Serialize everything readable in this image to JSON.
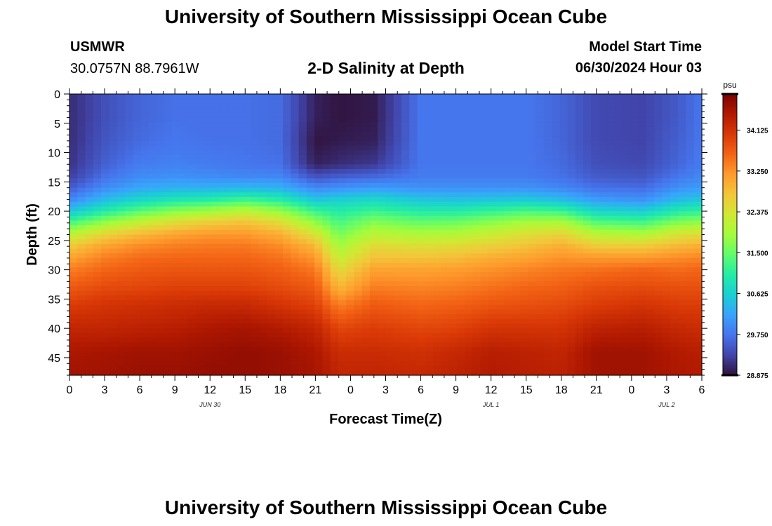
{
  "page": {
    "title": "University of Southern Mississippi Ocean Cube",
    "footer_title": "University of Southern Mississippi Ocean Cube"
  },
  "station": {
    "name": "USMWR",
    "coords": "30.0757N  88.7961W"
  },
  "model": {
    "label": "Model Start Time",
    "start": "06/30/2024 Hour 03"
  },
  "chart_data": {
    "type": "heatmap",
    "title": "2-D Salinity at Depth",
    "xlabel": "Forecast Time(Z)",
    "ylabel": "Depth (ft)",
    "x_tick_labels": [
      "0",
      "3",
      "6",
      "9",
      "12",
      "15",
      "18",
      "21",
      "0",
      "3",
      "6",
      "9",
      "12",
      "15",
      "18",
      "21",
      "0",
      "3",
      "6"
    ],
    "date_labels": [
      {
        "text": "JUN 30",
        "hour": 12
      },
      {
        "text": "JUL 1",
        "hour": 36
      },
      {
        "text": "JUL 2",
        "hour": 51
      }
    ],
    "x_range_hours": [
      0,
      54
    ],
    "y_ticks": [
      0,
      5,
      10,
      15,
      20,
      25,
      30,
      35,
      40,
      45
    ],
    "y_range": [
      0,
      48
    ],
    "y_inverted": true,
    "colorbar": {
      "unit": "psu",
      "tick_labels": [
        "34.125",
        "33.250",
        "32.375",
        "31.500",
        "30.625",
        "29.750",
        "28.875"
      ],
      "tick_values": [
        34.125,
        33.25,
        32.375,
        31.5,
        30.625,
        29.75,
        28.875
      ],
      "range": [
        28.875,
        34.9
      ],
      "colors": [
        "#30123b",
        "#4145ab",
        "#4675ed",
        "#39a2fc",
        "#1bcfd4",
        "#24eca6",
        "#61fc6c",
        "#a4fc3b",
        "#d1e834",
        "#f3c63a",
        "#fe9b2d",
        "#f36315",
        "#d93806",
        "#b11901",
        "#7a0403"
      ]
    },
    "profile_times_hours": [
      0,
      3,
      6,
      9,
      12,
      15,
      18,
      21,
      23,
      26,
      30,
      33,
      36,
      39,
      42,
      45,
      49,
      52,
      54
    ],
    "profile_depths_ft": [
      0,
      4,
      8,
      12,
      14,
      16,
      18,
      20,
      22,
      24,
      26,
      28,
      30,
      33,
      36,
      40,
      44,
      48
    ],
    "salinity_psu": [
      [
        29.1,
        29.1,
        29.1,
        29.15,
        29.25,
        29.5,
        29.9,
        30.5,
        31.3,
        32.1,
        32.7,
        33.1,
        33.4,
        33.7,
        34.0,
        34.3,
        34.5,
        34.6
      ],
      [
        29.4,
        29.4,
        29.45,
        29.55,
        29.7,
        29.95,
        30.4,
        31.0,
        31.8,
        32.6,
        33.1,
        33.4,
        33.6,
        33.85,
        34.1,
        34.3,
        34.55,
        34.6
      ],
      [
        29.6,
        29.6,
        29.65,
        29.8,
        29.95,
        30.2,
        30.7,
        31.4,
        32.2,
        32.9,
        33.3,
        33.55,
        33.7,
        33.9,
        34.15,
        34.35,
        34.6,
        34.65
      ],
      [
        29.7,
        29.7,
        29.75,
        29.85,
        30.0,
        30.3,
        30.9,
        31.7,
        32.5,
        33.1,
        33.4,
        33.6,
        33.75,
        33.95,
        34.2,
        34.4,
        34.6,
        34.65
      ],
      [
        29.7,
        29.7,
        29.7,
        29.8,
        29.95,
        30.3,
        31.0,
        31.9,
        32.7,
        33.2,
        33.45,
        33.6,
        33.75,
        33.95,
        34.25,
        34.5,
        34.65,
        34.7
      ],
      [
        29.7,
        29.7,
        29.7,
        29.75,
        29.9,
        30.35,
        31.2,
        32.1,
        32.8,
        33.2,
        33.45,
        33.6,
        33.75,
        33.95,
        34.25,
        34.55,
        34.7,
        34.7
      ],
      [
        29.65,
        29.65,
        29.65,
        29.7,
        29.9,
        30.3,
        31.0,
        31.8,
        32.5,
        33.0,
        33.3,
        33.5,
        33.65,
        33.85,
        34.1,
        34.45,
        34.65,
        34.65
      ],
      [
        29.0,
        29.0,
        28.9,
        29.0,
        29.4,
        29.9,
        30.5,
        31.2,
        31.8,
        32.4,
        32.9,
        33.2,
        33.45,
        33.7,
        33.95,
        34.3,
        34.5,
        34.55
      ],
      [
        28.9,
        28.9,
        28.95,
        29.1,
        29.5,
        30.0,
        30.6,
        31.0,
        31.3,
        31.6,
        31.9,
        32.2,
        32.5,
        32.9,
        33.4,
        33.9,
        34.2,
        34.3
      ],
      [
        28.95,
        28.95,
        29.0,
        29.2,
        29.6,
        30.1,
        30.7,
        31.2,
        31.7,
        32.1,
        32.5,
        32.8,
        33.1,
        33.4,
        33.7,
        34.0,
        34.2,
        34.3
      ],
      [
        29.75,
        29.75,
        29.75,
        29.75,
        29.8,
        30.0,
        30.5,
        31.0,
        31.5,
        32.0,
        32.45,
        32.8,
        33.1,
        33.35,
        33.6,
        33.9,
        34.15,
        34.25
      ],
      [
        29.75,
        29.75,
        29.75,
        29.75,
        29.8,
        30.0,
        30.45,
        31.0,
        31.55,
        32.05,
        32.5,
        32.85,
        33.15,
        33.4,
        33.65,
        33.95,
        34.25,
        34.35
      ],
      [
        29.75,
        29.75,
        29.75,
        29.75,
        29.8,
        30.0,
        30.5,
        31.15,
        31.75,
        32.25,
        32.65,
        33.0,
        33.25,
        33.5,
        33.75,
        34.1,
        34.4,
        34.45
      ],
      [
        29.75,
        29.75,
        29.75,
        29.75,
        29.8,
        30.0,
        30.55,
        31.3,
        31.95,
        32.45,
        32.8,
        33.1,
        33.35,
        33.6,
        33.8,
        34.1,
        34.35,
        34.4
      ],
      [
        29.6,
        29.6,
        29.6,
        29.65,
        29.7,
        29.9,
        30.4,
        31.2,
        32.0,
        32.6,
        33.0,
        33.25,
        33.45,
        33.65,
        33.85,
        34.1,
        34.3,
        34.35
      ],
      [
        29.35,
        29.35,
        29.35,
        29.4,
        29.5,
        29.7,
        30.1,
        30.7,
        31.4,
        32.1,
        32.7,
        33.2,
        33.5,
        33.8,
        34.0,
        34.35,
        34.6,
        34.6
      ],
      [
        29.3,
        29.3,
        29.3,
        29.35,
        29.45,
        29.65,
        30.0,
        30.6,
        31.3,
        32.0,
        32.7,
        33.2,
        33.6,
        33.85,
        34.1,
        34.4,
        34.6,
        34.6
      ],
      [
        29.5,
        29.5,
        29.55,
        29.6,
        29.75,
        30.0,
        30.4,
        31.0,
        31.7,
        32.4,
        32.9,
        33.3,
        33.55,
        33.8,
        34.0,
        34.25,
        34.45,
        34.5
      ],
      [
        29.75,
        29.75,
        29.75,
        29.8,
        29.9,
        30.1,
        30.5,
        31.1,
        31.8,
        32.5,
        33.0,
        33.35,
        33.6,
        33.8,
        34.0,
        34.2,
        34.4,
        34.45
      ]
    ]
  }
}
